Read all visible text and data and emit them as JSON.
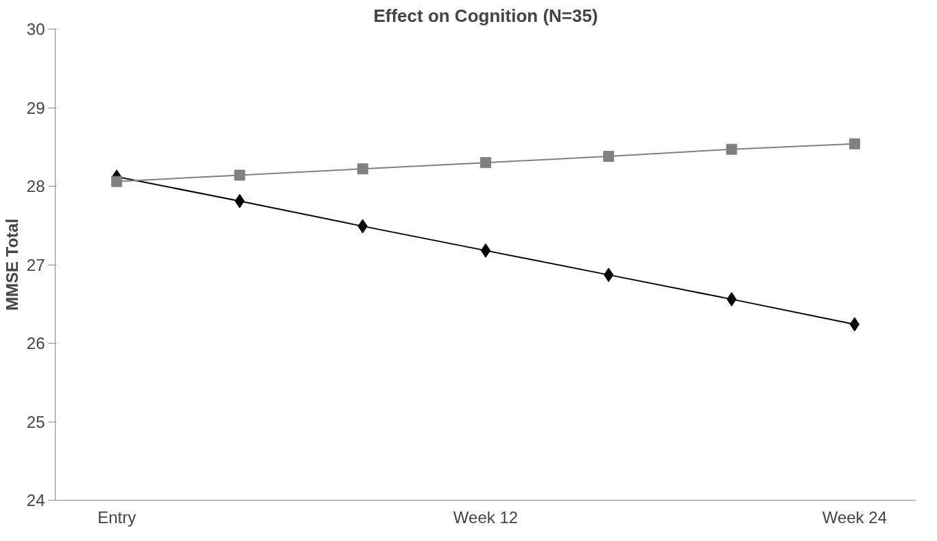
{
  "chart_data": {
    "type": "line",
    "title": "Effect on Cognition (N=35)",
    "ylabel": "MMSE Total",
    "categories": [
      "Entry",
      null,
      null,
      "Week 12",
      null,
      null,
      "Week 24"
    ],
    "series": [
      {
        "color": "#000000",
        "marker": "diamond",
        "values": [
          28.12,
          27.81,
          27.49,
          27.18,
          26.87,
          26.56,
          26.24
        ]
      },
      {
        "color": "#808080",
        "marker": "square",
        "values": [
          28.06,
          28.14,
          28.22,
          28.3,
          28.38,
          28.47,
          28.54
        ]
      }
    ],
    "ylim": [
      24,
      30
    ],
    "yticks": [
      24,
      25,
      26,
      27,
      28,
      29,
      30
    ],
    "grid": false,
    "line_style": "solid"
  }
}
